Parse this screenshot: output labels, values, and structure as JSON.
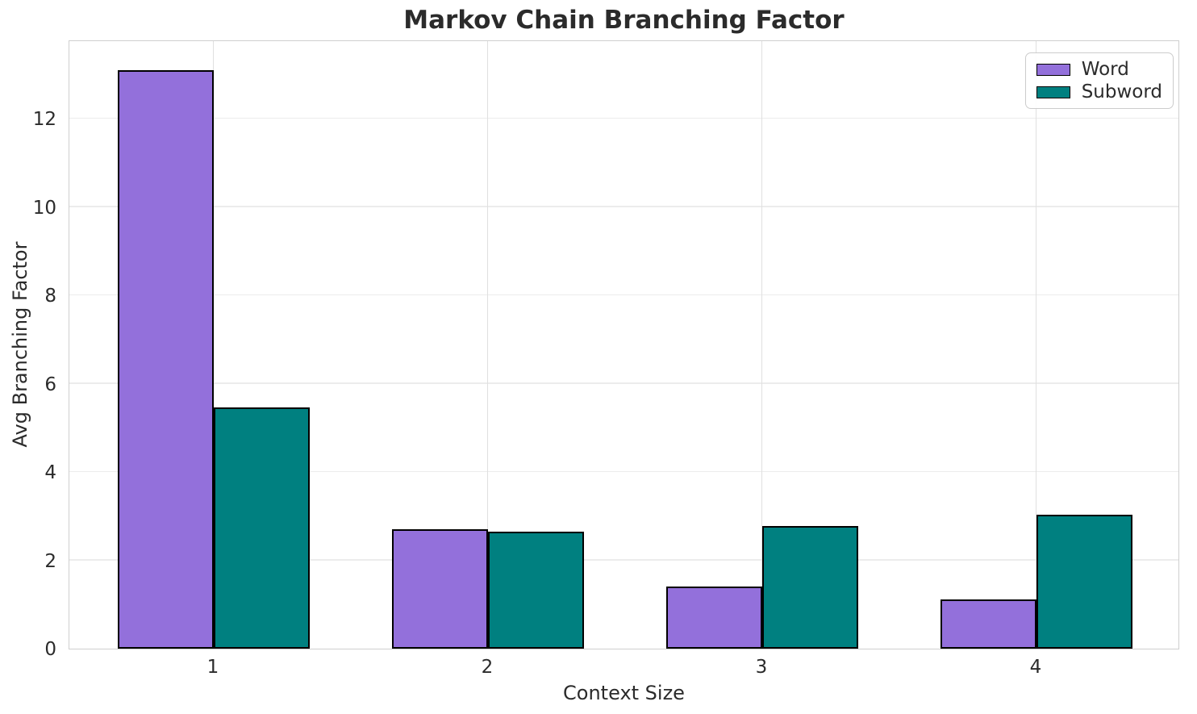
{
  "chart_data": {
    "type": "bar",
    "title": "Markov Chain Branching Factor",
    "xlabel": "Context Size",
    "ylabel": "Avg Branching Factor",
    "categories": [
      "1",
      "2",
      "3",
      "4"
    ],
    "series": [
      {
        "name": "Word",
        "color": "#9370DB",
        "values": [
          13.1,
          2.71,
          1.41,
          1.12
        ]
      },
      {
        "name": "Subword",
        "color": "#008080",
        "values": [
          5.47,
          2.65,
          2.78,
          3.04
        ]
      }
    ],
    "ylim": [
      0,
      13.8
    ],
    "yticks": [
      0,
      2,
      4,
      6,
      8,
      10,
      12
    ],
    "grid": true,
    "bar_width_frac": 0.35,
    "bar_edge_color": "#000000",
    "legend": {
      "position": "upper right",
      "entries": [
        "Word",
        "Subword"
      ]
    }
  },
  "style": {
    "background": "#ffffff",
    "text_color": "#2b2b2b",
    "grid_color": "#ececec",
    "vgrid_color": "#e0e0e0",
    "spine_color": "#cfcfcf"
  }
}
